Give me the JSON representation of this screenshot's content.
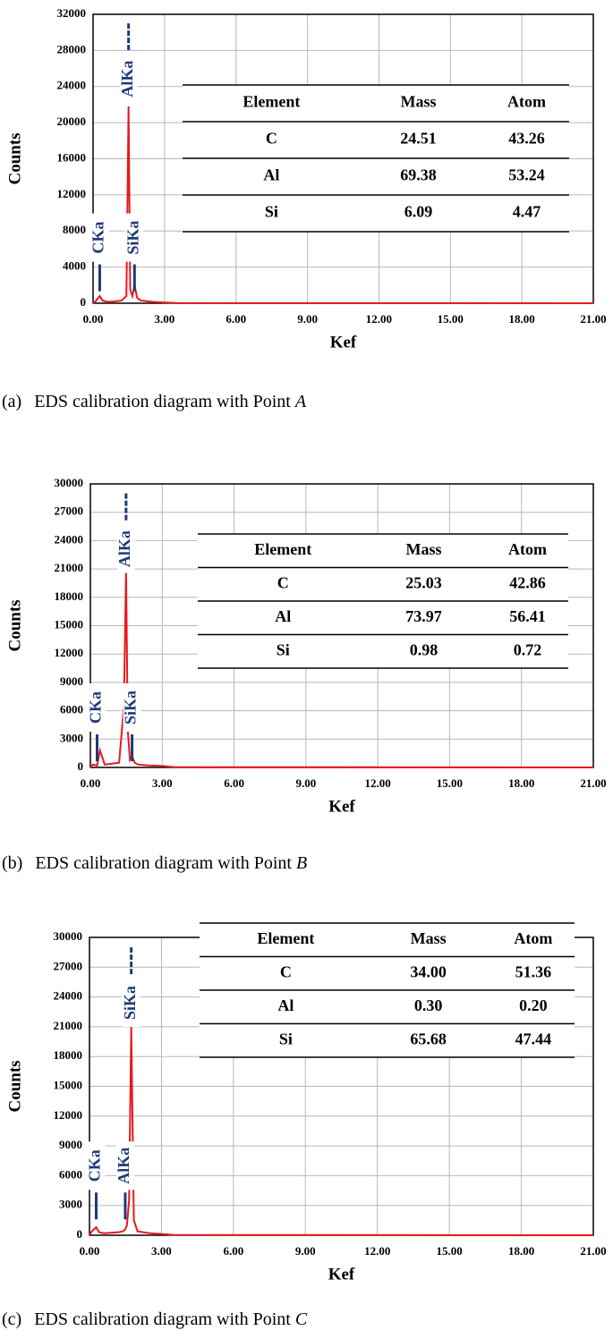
{
  "chart_data": [
    {
      "type": "line",
      "y_label": "Counts",
      "x_label": "Kef",
      "color": "#e8191c",
      "grid": true,
      "x": [
        0,
        0.1,
        0.28,
        0.4,
        0.6,
        0.9,
        1.2,
        1.4,
        1.49,
        1.56,
        1.65,
        1.74,
        1.85,
        2.0,
        2.5,
        3.0,
        3.5,
        21
      ],
      "values": [
        0,
        200,
        800,
        300,
        150,
        200,
        300,
        800,
        21800,
        1500,
        800,
        2000,
        600,
        300,
        150,
        80,
        20,
        0
      ],
      "xlim": [
        0,
        21
      ],
      "xticks": [
        {
          "value": 0,
          "label": "0.00"
        },
        {
          "value": 3,
          "label": "3.00"
        },
        {
          "value": 6,
          "label": "6.00"
        },
        {
          "value": 9,
          "label": "9.00"
        },
        {
          "value": 12,
          "label": "12.00"
        },
        {
          "value": 15,
          "label": "15.00"
        },
        {
          "value": 18,
          "label": "18.00"
        },
        {
          "value": 21,
          "label": "21.00"
        }
      ],
      "ylim": [
        0,
        32000
      ],
      "yticks": [
        0,
        4000,
        8000,
        12000,
        16000,
        20000,
        24000,
        28000,
        32000
      ],
      "annotations": [
        {
          "text": "CKa",
          "x": 0.28,
          "y": 4300
        },
        {
          "text": "AlKa",
          "x": 1.49,
          "y": 31000
        },
        {
          "text": "SiKa",
          "x": 1.74,
          "y": 4300
        }
      ],
      "table": {
        "columns": [
          "Element",
          "Mass",
          "Atom"
        ],
        "rows": [
          [
            "C",
            "24.51",
            "43.26"
          ],
          [
            "Al",
            "69.38",
            "53.24"
          ],
          [
            "Si",
            "6.09",
            "4.47"
          ]
        ]
      },
      "caption": {
        "label": "(a)",
        "text": "EDS calibration diagram with Point",
        "point": "A"
      }
    },
    {
      "type": "line",
      "y_label": "Counts",
      "x_label": "Kef",
      "color": "#e8191c",
      "grid": true,
      "x": [
        0,
        0.1,
        0.28,
        0.4,
        0.6,
        0.9,
        1.2,
        1.4,
        1.49,
        1.56,
        1.65,
        1.74,
        1.85,
        2.0,
        2.5,
        3.0,
        3.5,
        21
      ],
      "values": [
        0,
        300,
        200,
        1800,
        300,
        400,
        500,
        6500,
        20800,
        4000,
        800,
        1200,
        500,
        300,
        200,
        150,
        30,
        0
      ],
      "xlim": [
        0,
        21
      ],
      "xticks": [
        {
          "value": 0,
          "label": "0.00"
        },
        {
          "value": 3,
          "label": "3.00"
        },
        {
          "value": 6,
          "label": "6.00"
        },
        {
          "value": 9,
          "label": "9.00"
        },
        {
          "value": 12,
          "label": "12.00"
        },
        {
          "value": 15,
          "label": "15.00"
        },
        {
          "value": 18,
          "label": "18.00"
        },
        {
          "value": 21,
          "label": "21.00"
        }
      ],
      "ylim": [
        0,
        30000
      ],
      "yticks": [
        0,
        3000,
        6000,
        9000,
        12000,
        15000,
        18000,
        21000,
        24000,
        27000,
        30000
      ],
      "annotations": [
        {
          "text": "CKa",
          "x": 0.28,
          "y": 3500
        },
        {
          "text": "AlKa",
          "x": 1.49,
          "y": 29000
        },
        {
          "text": "SiKa",
          "x": 1.74,
          "y": 3500
        }
      ],
      "table": {
        "columns": [
          "Element",
          "Mass",
          "Atom"
        ],
        "rows": [
          [
            "C",
            "25.03",
            "42.86"
          ],
          [
            "Al",
            "73.97",
            "56.41"
          ],
          [
            "Si",
            "0.98",
            "0.72"
          ]
        ]
      },
      "caption": {
        "label": "(b)",
        "text": "EDS calibration diagram with Point",
        "point": "B"
      }
    },
    {
      "type": "line",
      "y_label": "Counts",
      "x_label": "Kef",
      "color": "#e8191c",
      "grid": true,
      "x": [
        0,
        0.1,
        0.28,
        0.4,
        0.6,
        0.9,
        1.2,
        1.4,
        1.49,
        1.56,
        1.65,
        1.74,
        1.85,
        2.0,
        2.5,
        3.0,
        3.5,
        21
      ],
      "values": [
        0,
        400,
        800,
        300,
        200,
        250,
        300,
        400,
        600,
        1000,
        3500,
        21000,
        1500,
        400,
        200,
        120,
        30,
        0
      ],
      "xlim": [
        0,
        21
      ],
      "xticks": [
        {
          "value": 0,
          "label": "0.00"
        },
        {
          "value": 3,
          "label": "3.00"
        },
        {
          "value": 6,
          "label": "6.00"
        },
        {
          "value": 9,
          "label": "9.00"
        },
        {
          "value": 12,
          "label": "12.00"
        },
        {
          "value": 15,
          "label": "15.00"
        },
        {
          "value": 18,
          "label": "18.00"
        },
        {
          "value": 21,
          "label": "21.00"
        }
      ],
      "ylim": [
        0,
        30000
      ],
      "yticks": [
        0,
        3000,
        6000,
        9000,
        12000,
        15000,
        18000,
        21000,
        24000,
        27000,
        30000
      ],
      "annotations": [
        {
          "text": "CKa",
          "x": 0.28,
          "y": 4300
        },
        {
          "text": "AlKa",
          "x": 1.49,
          "y": 4300
        },
        {
          "text": "SiKa",
          "x": 1.74,
          "y": 29000
        }
      ],
      "table": {
        "columns": [
          "Element",
          "Mass",
          "Atom"
        ],
        "rows": [
          [
            "C",
            "34.00",
            "51.36"
          ],
          [
            "Al",
            "0.30",
            "0.20"
          ],
          [
            "Si",
            "65.68",
            "47.44"
          ]
        ]
      },
      "caption": {
        "label": "(c)",
        "text": "EDS calibration diagram with Point",
        "point": "C"
      }
    }
  ]
}
